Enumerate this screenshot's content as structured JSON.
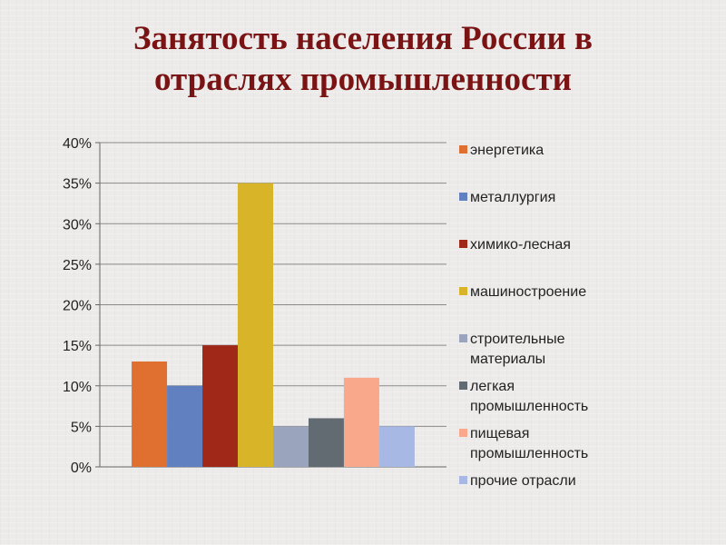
{
  "title": {
    "line1": "Занятость населения России в",
    "line2": "отраслях промышленности"
  },
  "chart_data": {
    "type": "bar",
    "categories": [
      ""
    ],
    "ylim": [
      0,
      40
    ],
    "yticks": [
      0,
      5,
      10,
      15,
      20,
      25,
      30,
      35,
      40
    ],
    "ytick_labels": [
      "0%",
      "5%",
      "10%",
      "15%",
      "20%",
      "25%",
      "30%",
      "35%",
      "40%"
    ],
    "grid": true,
    "legend_position": "right",
    "series": [
      {
        "name": "энергетика",
        "legend_lines": [
          "энергетика"
        ],
        "value": 13,
        "color": "#e07030"
      },
      {
        "name": "металлургия",
        "legend_lines": [
          "металлургия"
        ],
        "value": 10,
        "color": "#6080c0"
      },
      {
        "name": "химико-лесная",
        "legend_lines": [
          "химико-лесная"
        ],
        "value": 15,
        "color": "#a02818"
      },
      {
        "name": "машиностроение",
        "legend_lines": [
          "машиностроение"
        ],
        "value": 35,
        "color": "#d8b428"
      },
      {
        "name": "строительные материалы",
        "legend_lines": [
          "строительные",
          "материалы"
        ],
        "value": 5,
        "color": "#9aa4bc"
      },
      {
        "name": "легкая промышленность",
        "legend_lines": [
          "легкая",
          "промышленность"
        ],
        "value": 6,
        "color": "#636b72"
      },
      {
        "name": "пищевая промышленность",
        "legend_lines": [
          "пищевая",
          "промышленность"
        ],
        "value": 11,
        "color": "#f9a88c"
      },
      {
        "name": "прочие отрасли",
        "legend_lines": [
          "прочие отрасли"
        ],
        "value": 5,
        "color": "#a8b8e4"
      }
    ]
  }
}
